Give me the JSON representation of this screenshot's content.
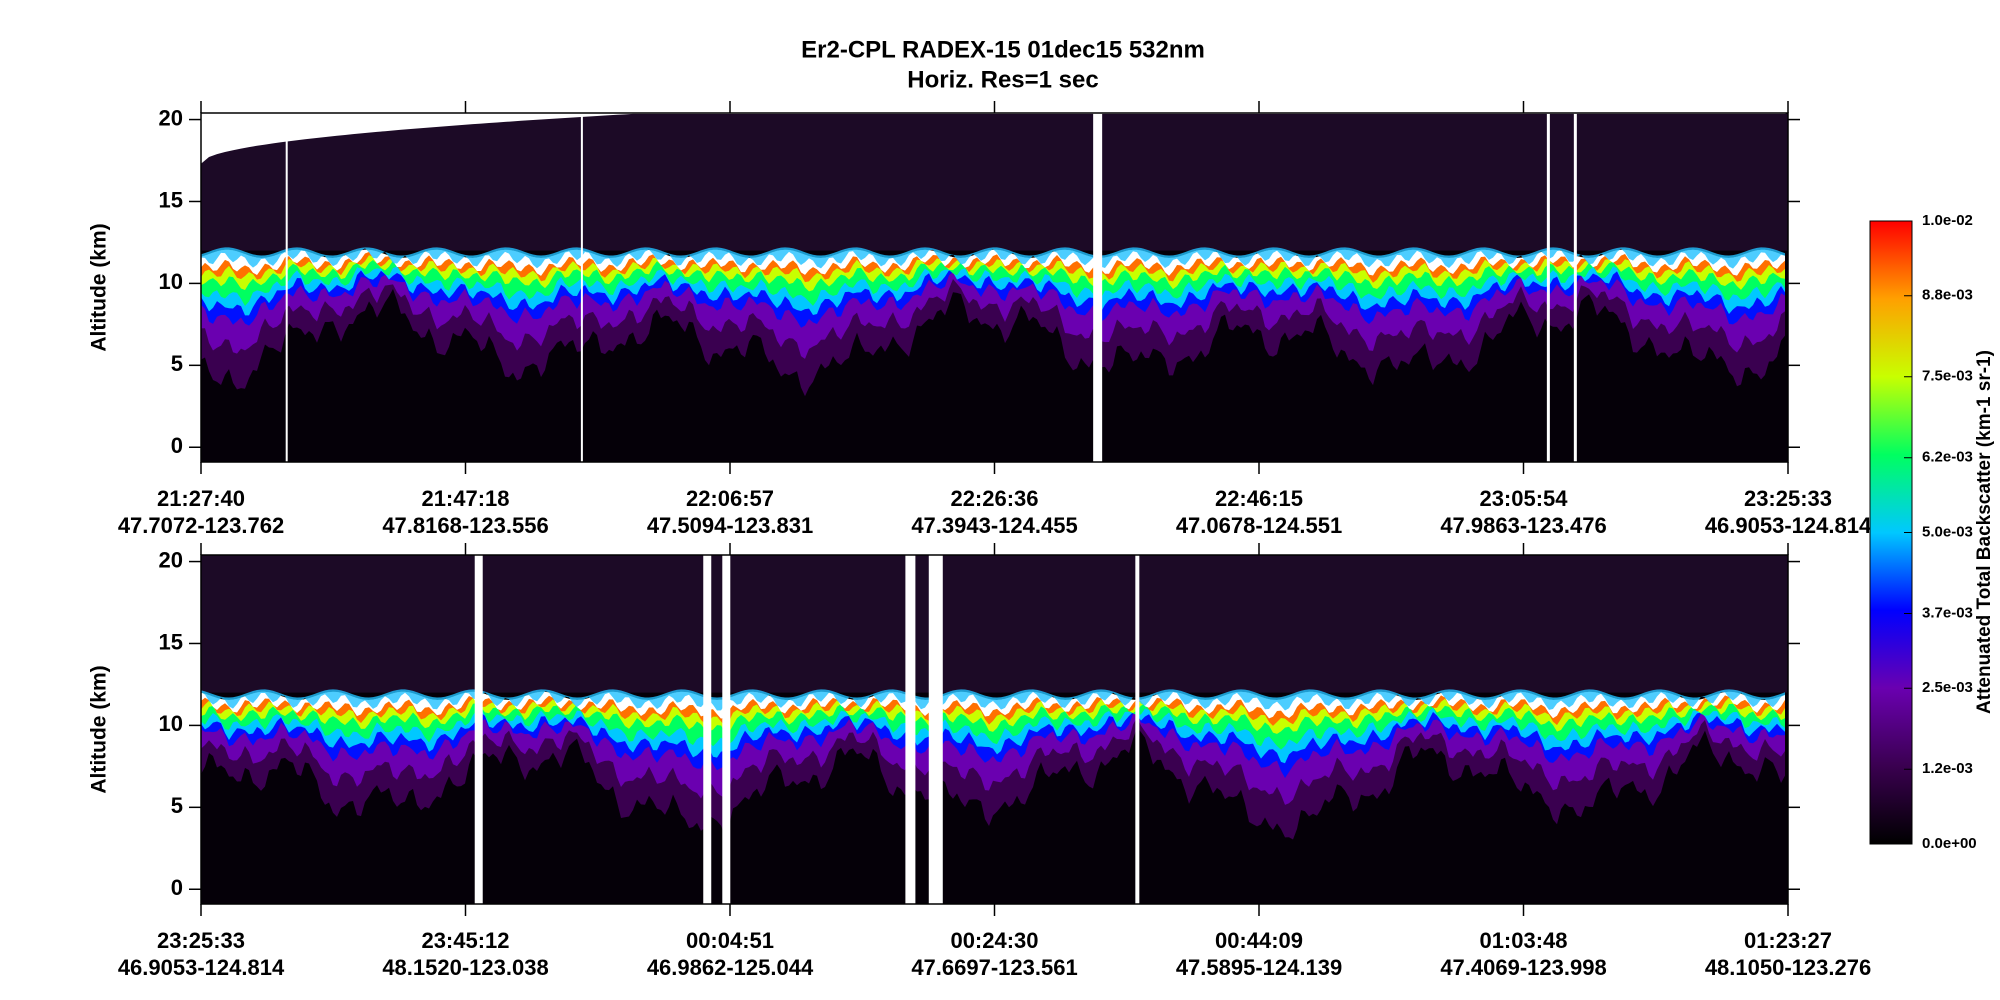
{
  "title": "Er2-CPL  RADEX-15  01dec15  532nm",
  "subtitle": "Horiz. Res=1 sec",
  "chart_data": [
    {
      "type": "heatmap",
      "ylabel": "Altitude (km)",
      "ylim": [
        -0.9,
        20.4
      ],
      "yticks": [
        0,
        5,
        10,
        15,
        20
      ],
      "xtick_labels": [
        [
          "21:27:40",
          "47.7072-123.762"
        ],
        [
          "21:47:18",
          "47.8168-123.556"
        ],
        [
          "22:06:57",
          "47.5094-123.831"
        ],
        [
          "22:26:36",
          "47.3943-124.455"
        ],
        [
          "22:46:15",
          "47.0678-124.551"
        ],
        [
          "23:05:54",
          "47.9863-123.476"
        ],
        [
          "23:25:33",
          "46.9053-124.814"
        ]
      ]
    },
    {
      "type": "heatmap",
      "ylabel": "Altitude (km)",
      "ylim": [
        -0.9,
        20.4
      ],
      "yticks": [
        0,
        5,
        10,
        15,
        20
      ],
      "xtick_labels": [
        [
          "23:25:33",
          "46.9053-124.814"
        ],
        [
          "23:45:12",
          "48.1520-123.038"
        ],
        [
          "00:04:51",
          "46.9862-125.044"
        ],
        [
          "00:24:30",
          "47.6697-123.561"
        ],
        [
          "00:44:09",
          "47.5895-124.139"
        ],
        [
          "01:03:48",
          "47.4069-123.998"
        ],
        [
          "01:23:27",
          "48.1050-123.276"
        ]
      ]
    }
  ],
  "colorbar": {
    "label": "Attenuated Total Backscatter (km-1 sr-1)",
    "lim": [
      0,
      0.01
    ],
    "colors": [
      "#000000",
      "#3a0050",
      "#6a00b0",
      "#0000ff",
      "#00c8ff",
      "#00ff60",
      "#c8ff00",
      "#ffa000",
      "#ff0000"
    ],
    "ticks": [
      {
        "value": 0,
        "label": "0.0e+00"
      },
      {
        "value": 0.0012,
        "label": "1.2e-03"
      },
      {
        "value": 0.0025,
        "label": "2.5e-03"
      },
      {
        "value": 0.0037,
        "label": "3.7e-03"
      },
      {
        "value": 0.005,
        "label": "5.0e-03"
      },
      {
        "value": 0.0062,
        "label": "6.2e-03"
      },
      {
        "value": 0.0075,
        "label": "7.5e-03"
      },
      {
        "value": 0.0088,
        "label": "8.8e-03"
      },
      {
        "value": 0.01,
        "label": "1.0e-02"
      }
    ]
  }
}
